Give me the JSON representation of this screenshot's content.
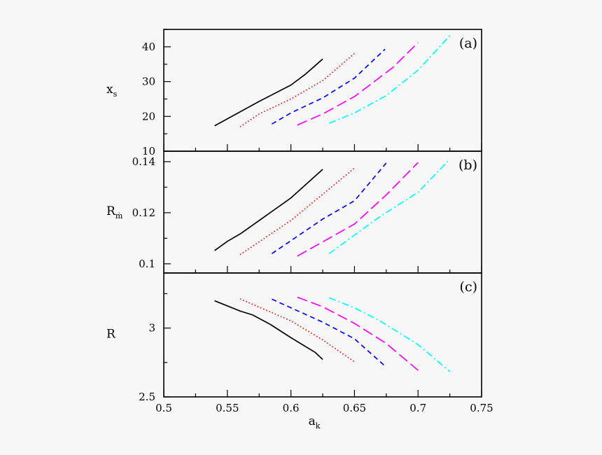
{
  "chart_data": {
    "type": "line",
    "layout": "three vertically stacked panels sharing x axis",
    "xlabel": "a",
    "xlabel_sub": "k",
    "xlim": [
      0.5,
      0.75
    ],
    "xticks": [
      "0.5",
      "0.55",
      "0.6",
      "0.65",
      "0.7",
      "0.75"
    ],
    "grid": false,
    "series_styles": [
      {
        "color": "#000000",
        "dash": "solid"
      },
      {
        "color": "#ff0000",
        "dash": "dotted"
      },
      {
        "color": "#0000ff",
        "dash": "dashed"
      },
      {
        "color": "#ff00ff",
        "dash": "long-dashed"
      },
      {
        "color": "#00ffff",
        "dash": "dash-dot"
      }
    ],
    "panels": [
      {
        "label": "(a)",
        "ylabel": "x",
        "ylabel_sub": "s",
        "ylim": [
          10,
          45
        ],
        "yticks": [
          "10",
          "20",
          "30",
          "40"
        ],
        "ytick_values": [
          10,
          20,
          30,
          40
        ],
        "yminor": 5,
        "series": [
          {
            "x": [
              0.54,
              0.55,
              0.575,
              0.6,
              0.611,
              0.625
            ],
            "y": [
              17.3,
              19.3,
              24.3,
              29,
              32,
              36.5
            ]
          },
          {
            "x": [
              0.56,
              0.575,
              0.6,
              0.625,
              0.65
            ],
            "y": [
              17,
              20.7,
              25,
              30.3,
              38.1
            ]
          },
          {
            "x": [
              0.585,
              0.6,
              0.625,
              0.65,
              0.674
            ],
            "y": [
              17.8,
              21,
              25.3,
              31,
              39.3
            ]
          },
          {
            "x": [
              0.605,
              0.625,
              0.65,
              0.68,
              0.7
            ],
            "y": [
              17.5,
              20.7,
              25.7,
              34,
              41.2
            ]
          },
          {
            "x": [
              0.63,
              0.65,
              0.675,
              0.7,
              0.725
            ],
            "y": [
              18,
              21,
              26,
              33.3,
              43.2
            ]
          }
        ]
      },
      {
        "label": "(b)",
        "ylabel": "R",
        "ylabel_sub": "ṁ",
        "ylim": [
          0.0964,
          0.1441
        ],
        "yticks": [
          "0.1",
          "0.12",
          "0.14"
        ],
        "ytick_values": [
          0.1,
          0.12,
          0.14
        ],
        "yminor": 0.01,
        "series": [
          {
            "x": [
              0.54,
              0.55,
              0.561,
              0.6,
              0.625
            ],
            "y": [
              0.1052,
              0.1088,
              0.112,
              0.1258,
              0.137
            ]
          },
          {
            "x": [
              0.56,
              0.6,
              0.65
            ],
            "y": [
              0.1036,
              0.117,
              0.1375
            ]
          },
          {
            "x": [
              0.585,
              0.625,
              0.65,
              0.675
            ],
            "y": [
              0.104,
              0.1175,
              0.1247,
              0.1395
            ]
          },
          {
            "x": [
              0.605,
              0.65,
              0.675,
              0.7
            ],
            "y": [
              0.103,
              0.1156,
              0.127,
              0.1397
            ]
          },
          {
            "x": [
              0.63,
              0.67,
              0.7,
              0.725
            ],
            "y": [
              0.104,
              0.1185,
              0.128,
              0.141
            ]
          }
        ]
      },
      {
        "label": "(c)",
        "ylabel": "R",
        "ylabel_sub": "",
        "ylim": [
          2.5,
          3.4
        ],
        "yticks": [
          "2.5",
          "3"
        ],
        "ytick_values": [
          2.5,
          3
        ],
        "yminor": 0.25,
        "series": [
          {
            "x": [
              0.54,
              0.56,
              0.57,
              0.584,
              0.6,
              0.619,
              0.625
            ],
            "y": [
              3.198,
              3.124,
              3.095,
              3.026,
              2.93,
              2.824,
              2.772
            ]
          },
          {
            "x": [
              0.56,
              0.6,
              0.625,
              0.65
            ],
            "y": [
              3.212,
              3.052,
              2.914,
              2.755
            ]
          },
          {
            "x": [
              0.585,
              0.625,
              0.65,
              0.675
            ],
            "y": [
              3.21,
              3.043,
              2.922,
              2.716
            ]
          },
          {
            "x": [
              0.605,
              0.625,
              0.65,
              0.675,
              0.7
            ],
            "y": [
              3.224,
              3.155,
              3.034,
              2.888,
              2.693
            ]
          },
          {
            "x": [
              0.63,
              0.65,
              0.67,
              0.7,
              0.725
            ],
            "y": [
              3.22,
              3.147,
              3.052,
              2.88,
              2.684
            ]
          }
        ]
      }
    ]
  }
}
